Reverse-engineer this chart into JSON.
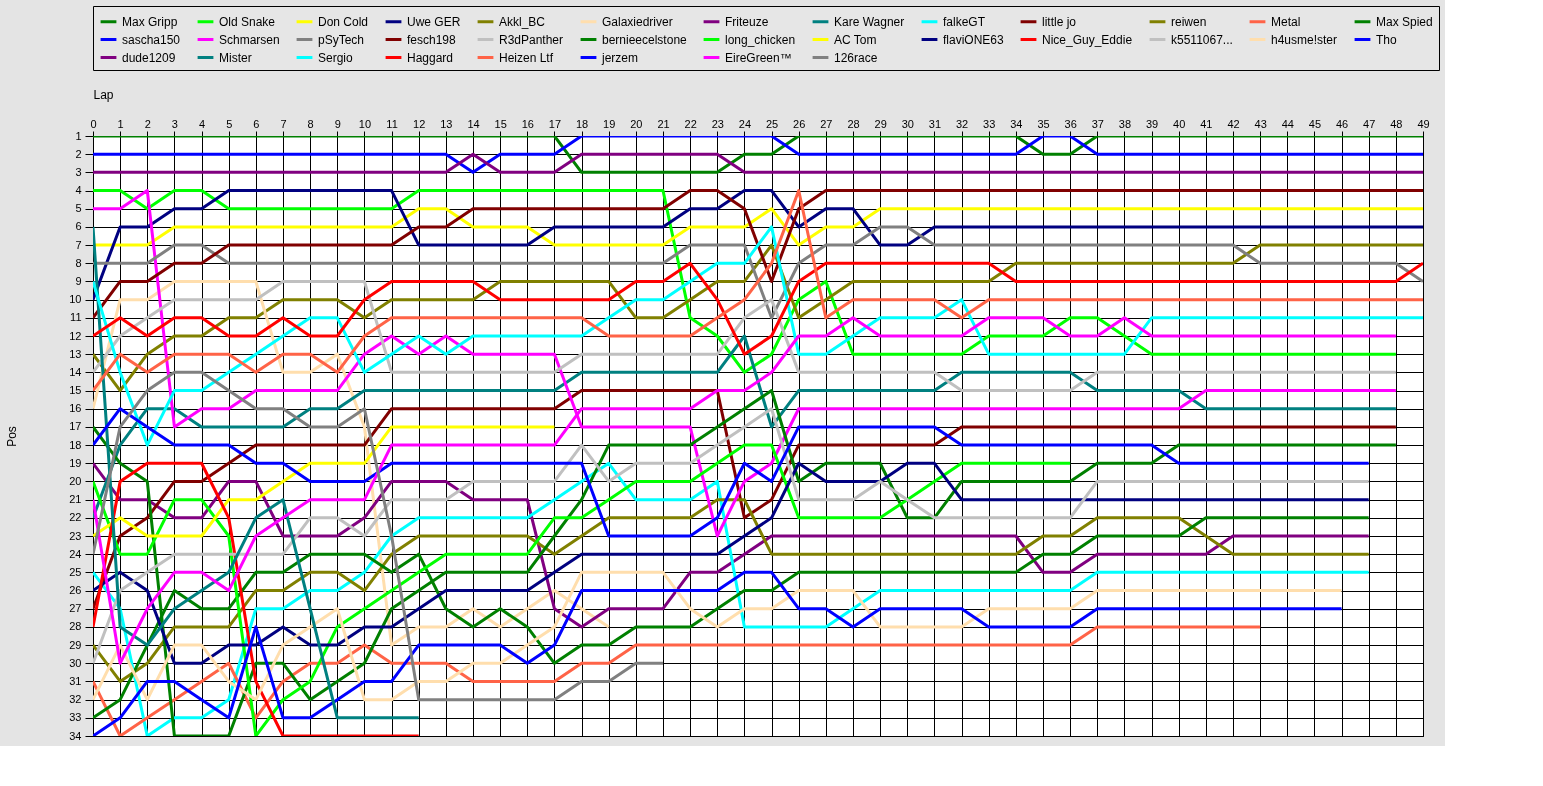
{
  "chart_data": {
    "type": "line",
    "xlabel": "Lap",
    "ylabel": "Pos",
    "x": [
      0,
      1,
      2,
      3,
      4,
      5,
      6,
      7,
      8,
      9,
      10,
      11,
      12,
      13,
      14,
      15,
      16,
      17,
      18,
      19,
      20,
      21,
      22,
      23,
      24,
      25,
      26,
      27,
      28,
      29,
      30,
      31,
      32,
      33,
      34,
      35,
      36,
      37,
      38,
      39,
      40,
      41,
      42,
      43,
      44,
      45,
      46,
      47,
      48,
      49
    ],
    "xlim": [
      0,
      49
    ],
    "xticks": [
      0,
      1,
      2,
      3,
      4,
      5,
      6,
      7,
      8,
      9,
      10,
      11,
      12,
      13,
      14,
      15,
      16,
      17,
      18,
      19,
      20,
      21,
      22,
      23,
      24,
      25,
      26,
      27,
      28,
      29,
      30,
      31,
      32,
      33,
      34,
      35,
      36,
      37,
      38,
      39,
      40,
      41,
      42,
      43,
      44,
      45,
      46,
      47,
      48,
      49
    ],
    "ylim": [
      34,
      1
    ],
    "yticks": [
      1,
      2,
      3,
      4,
      5,
      6,
      7,
      8,
      9,
      10,
      11,
      12,
      13,
      14,
      15,
      16,
      17,
      18,
      19,
      20,
      21,
      22,
      23,
      24,
      25,
      26,
      27,
      28,
      29,
      30,
      31,
      32,
      33,
      34
    ],
    "grid": true,
    "legend": "top",
    "line_style": "solid",
    "series": [
      {
        "name": "Max Gripp",
        "color": "#008000",
        "values": [
          1,
          1,
          1,
          1,
          1,
          1,
          1,
          1,
          1,
          1,
          1,
          1,
          1,
          1,
          1,
          1,
          1,
          1,
          3,
          3,
          3,
          3,
          3,
          3,
          2,
          2,
          1,
          1,
          1,
          1,
          1,
          1,
          1,
          1,
          1,
          2,
          2,
          1,
          1,
          1,
          1,
          1,
          1,
          1,
          1,
          1,
          1,
          1,
          1,
          1
        ]
      },
      {
        "name": "Old Snake",
        "color": "#00ff00",
        "values": [
          4,
          4,
          5,
          4,
          4,
          5,
          5,
          5,
          5,
          5,
          5,
          5,
          4,
          4,
          4,
          4,
          4,
          4,
          4,
          4,
          4,
          4,
          11,
          12,
          14,
          13,
          10,
          9,
          13,
          13,
          13,
          13,
          13,
          12,
          12,
          12,
          11,
          11,
          12,
          13,
          13,
          13,
          13,
          13,
          13,
          13,
          13,
          13,
          13,
          null
        ]
      },
      {
        "name": "Don Cold",
        "color": "#ffff00",
        "values": [
          7,
          7,
          7,
          6,
          6,
          6,
          6,
          6,
          6,
          6,
          6,
          6,
          5,
          5,
          6,
          6,
          6,
          7,
          7,
          7,
          7,
          7,
          6,
          6,
          6,
          5,
          7,
          6,
          6,
          5,
          5,
          5,
          5,
          5,
          5,
          5,
          5,
          5,
          5,
          5,
          5,
          5,
          5,
          5,
          5,
          5,
          5,
          5,
          5,
          5
        ]
      },
      {
        "name": "Uwe GER",
        "color": "#000080",
        "values": [
          10,
          6,
          6,
          5,
          5,
          4,
          4,
          4,
          4,
          4,
          4,
          4,
          7,
          7,
          7,
          7,
          7,
          6,
          6,
          6,
          6,
          6,
          5,
          5,
          4,
          4,
          6,
          5,
          5,
          7,
          7,
          6,
          6,
          6,
          6,
          6,
          6,
          6,
          6,
          6,
          6,
          6,
          6,
          6,
          6,
          6,
          6,
          6,
          6,
          6
        ]
      },
      {
        "name": "Akkl_BC",
        "color": "#808000",
        "values": [
          13,
          15,
          13,
          12,
          12,
          11,
          11,
          10,
          10,
          10,
          11,
          10,
          10,
          10,
          10,
          9,
          9,
          9,
          9,
          9,
          11,
          11,
          10,
          9,
          9,
          7,
          11,
          10,
          9,
          9,
          9,
          9,
          9,
          9,
          8,
          8,
          8,
          8,
          8,
          8,
          8,
          8,
          8,
          7,
          7,
          7,
          7,
          7,
          7,
          7
        ]
      },
      {
        "name": "Galaxiedriver",
        "color": "#ffdead",
        "values": [
          16,
          10,
          10,
          9,
          9,
          9,
          9,
          14,
          14,
          13,
          17,
          29,
          28,
          28,
          27,
          28,
          27,
          26,
          27,
          28,
          null,
          null,
          null,
          null,
          null,
          null,
          null,
          null,
          null,
          null,
          null,
          null,
          null,
          null,
          null,
          null,
          null,
          null,
          null,
          null,
          null,
          null,
          null,
          null,
          null,
          null,
          null,
          null,
          null,
          null
        ]
      },
      {
        "name": "Friteuze",
        "color": "#800080",
        "values": [
          19,
          21,
          21,
          22,
          22,
          20,
          20,
          23,
          23,
          23,
          22,
          20,
          20,
          20,
          21,
          21,
          21,
          27,
          28,
          27,
          27,
          27,
          25,
          25,
          24,
          23,
          23,
          23,
          23,
          23,
          23,
          23,
          23,
          23,
          23,
          25,
          25,
          24,
          24,
          24,
          24,
          24,
          23,
          23,
          23,
          23,
          23,
          23,
          null,
          null
        ]
      },
      {
        "name": "Kare Wagner",
        "color": "#008080",
        "values": [
          22,
          18,
          16,
          16,
          17,
          17,
          17,
          17,
          16,
          16,
          15,
          15,
          15,
          15,
          15,
          15,
          15,
          15,
          14,
          14,
          14,
          14,
          14,
          14,
          12,
          17,
          15,
          15,
          15,
          15,
          15,
          15,
          14,
          14,
          14,
          14,
          14,
          15,
          15,
          15,
          15,
          16,
          16,
          16,
          16,
          16,
          16,
          16,
          16,
          null
        ]
      },
      {
        "name": "falkeGT",
        "color": "#00ffff",
        "values": [
          25,
          27,
          34,
          33,
          33,
          32,
          27,
          27,
          26,
          26,
          25,
          23,
          22,
          22,
          22,
          22,
          22,
          21,
          20,
          19,
          21,
          21,
          21,
          20,
          28,
          28,
          28,
          28,
          27,
          26,
          26,
          26,
          26,
          26,
          26,
          26,
          26,
          25,
          25,
          25,
          25,
          25,
          25,
          25,
          25,
          25,
          25,
          25,
          null,
          null
        ]
      },
      {
        "name": "little jo",
        "color": "#800000",
        "values": [
          27,
          23,
          22,
          20,
          20,
          19,
          18,
          18,
          18,
          18,
          18,
          16,
          16,
          16,
          16,
          16,
          16,
          16,
          15,
          15,
          15,
          15,
          15,
          15,
          22,
          21,
          18,
          18,
          18,
          18,
          18,
          18,
          17,
          17,
          17,
          17,
          17,
          17,
          17,
          17,
          17,
          17,
          17,
          17,
          17,
          17,
          17,
          17,
          17,
          null
        ]
      },
      {
        "name": "reiwen",
        "color": "#808000",
        "values": [
          29,
          31,
          30,
          28,
          28,
          28,
          26,
          26,
          25,
          25,
          26,
          24,
          23,
          23,
          23,
          23,
          23,
          24,
          23,
          22,
          22,
          22,
          22,
          21,
          21,
          24,
          24,
          24,
          24,
          24,
          24,
          24,
          24,
          24,
          24,
          23,
          23,
          22,
          22,
          22,
          22,
          23,
          24,
          24,
          24,
          24,
          24,
          24,
          null,
          null
        ]
      },
      {
        "name": "Metal",
        "color": "#ff6347",
        "values": [
          31,
          34,
          33,
          32,
          31,
          30,
          33,
          31,
          30,
          30,
          29,
          30,
          30,
          30,
          31,
          31,
          31,
          31,
          30,
          30,
          29,
          29,
          29,
          29,
          29,
          29,
          29,
          29,
          29,
          29,
          29,
          29,
          29,
          29,
          29,
          29,
          29,
          28,
          28,
          28,
          28,
          28,
          28,
          28,
          null,
          null,
          null,
          null,
          null,
          null
        ]
      },
      {
        "name": "Max Spied",
        "color": "#008000",
        "values": [
          33,
          32,
          29,
          26,
          27,
          27,
          25,
          25,
          24,
          24,
          24,
          25,
          24,
          27,
          28,
          27,
          28,
          30,
          29,
          29,
          28,
          28,
          28,
          27,
          26,
          26,
          25,
          25,
          25,
          25,
          25,
          25,
          25,
          25,
          25,
          24,
          24,
          23,
          23,
          23,
          23,
          22,
          22,
          22,
          22,
          22,
          22,
          22,
          null,
          null
        ]
      },
      {
        "name": "sascha150",
        "color": "#0000ff",
        "values": [
          2,
          2,
          2,
          2,
          2,
          2,
          2,
          2,
          2,
          2,
          2,
          2,
          2,
          2,
          3,
          2,
          2,
          2,
          1,
          1,
          1,
          1,
          1,
          1,
          1,
          1,
          2,
          2,
          2,
          2,
          2,
          2,
          2,
          2,
          2,
          1,
          1,
          2,
          2,
          2,
          2,
          2,
          2,
          2,
          2,
          2,
          2,
          2,
          2,
          2
        ]
      },
      {
        "name": "Schmarsen",
        "color": "#ff00ff",
        "values": [
          5,
          5,
          4,
          17,
          16,
          16,
          15,
          15,
          15,
          15,
          13,
          12,
          13,
          12,
          13,
          13,
          13,
          13,
          17,
          17,
          17,
          17,
          17,
          23,
          20,
          19,
          16,
          16,
          16,
          16,
          16,
          16,
          16,
          16,
          16,
          16,
          16,
          16,
          16,
          16,
          16,
          15,
          15,
          15,
          15,
          15,
          15,
          15,
          15,
          null
        ]
      },
      {
        "name": "pSyTech",
        "color": "#808080",
        "values": [
          8,
          8,
          8,
          7,
          7,
          8,
          8,
          8,
          8,
          8,
          8,
          8,
          8,
          8,
          8,
          8,
          8,
          8,
          8,
          8,
          8,
          8,
          7,
          7,
          7,
          11,
          8,
          7,
          7,
          6,
          6,
          7,
          7,
          7,
          7,
          7,
          7,
          7,
          7,
          7,
          7,
          7,
          7,
          8,
          8,
          8,
          8,
          8,
          8,
          9
        ]
      },
      {
        "name": "fesch198",
        "color": "#800000",
        "values": [
          11,
          9,
          9,
          8,
          8,
          7,
          7,
          7,
          7,
          7,
          7,
          7,
          6,
          6,
          5,
          5,
          5,
          5,
          5,
          5,
          5,
          5,
          4,
          4,
          5,
          9,
          5,
          4,
          4,
          4,
          4,
          4,
          4,
          4,
          4,
          4,
          4,
          4,
          4,
          4,
          4,
          4,
          4,
          4,
          4,
          4,
          4,
          4,
          4,
          4
        ]
      },
      {
        "name": "R3dPanther",
        "color": "#c0c0c0",
        "values": [
          14,
          12,
          11,
          10,
          10,
          10,
          10,
          9,
          9,
          9,
          9,
          14,
          14,
          14,
          14,
          14,
          14,
          14,
          13,
          13,
          13,
          13,
          13,
          13,
          11,
          10,
          14,
          14,
          14,
          14,
          14,
          14,
          15,
          15,
          15,
          15,
          15,
          14,
          14,
          14,
          14,
          14,
          14,
          14,
          14,
          14,
          14,
          14,
          14,
          null
        ]
      },
      {
        "name": "bernieecelstone",
        "color": "#008000",
        "values": [
          17,
          19,
          20,
          34,
          34,
          34,
          30,
          30,
          32,
          31,
          30,
          27,
          26,
          25,
          25,
          25,
          25,
          23,
          21,
          18,
          18,
          18,
          18,
          17,
          16,
          15,
          20,
          19,
          19,
          19,
          22,
          22,
          20,
          20,
          20,
          20,
          20,
          19,
          19,
          19,
          18,
          18,
          18,
          18,
          18,
          18,
          18,
          18,
          18,
          null
        ]
      },
      {
        "name": "long_chicken",
        "color": "#00ff00",
        "values": [
          20,
          24,
          24,
          21,
          21,
          23,
          34,
          32,
          31,
          28,
          27,
          26,
          25,
          24,
          24,
          24,
          24,
          22,
          22,
          21,
          20,
          20,
          20,
          19,
          18,
          18,
          22,
          22,
          22,
          22,
          21,
          20,
          19,
          19,
          19,
          19,
          19,
          null,
          null,
          null,
          null,
          null,
          null,
          null,
          null,
          null,
          null,
          null,
          null,
          null
        ]
      },
      {
        "name": "AC Tom",
        "color": "#ffff00",
        "values": [
          23,
          22,
          23,
          23,
          23,
          21,
          21,
          20,
          19,
          19,
          19,
          17,
          17,
          17,
          17,
          17,
          17,
          17,
          null,
          null,
          null,
          null,
          null,
          null,
          null,
          null,
          null,
          null,
          null,
          null,
          null,
          null,
          null,
          null,
          null,
          null,
          null,
          null,
          null,
          null,
          null,
          null,
          null,
          null,
          null,
          null,
          null,
          null,
          null,
          null
        ]
      },
      {
        "name": "flaviONE63",
        "color": "#000080",
        "values": [
          26,
          25,
          26,
          30,
          30,
          29,
          29,
          28,
          29,
          29,
          28,
          28,
          27,
          26,
          26,
          26,
          26,
          25,
          24,
          24,
          24,
          24,
          24,
          24,
          23,
          22,
          19,
          20,
          20,
          20,
          19,
          19,
          21,
          21,
          21,
          21,
          21,
          21,
          21,
          21,
          21,
          21,
          21,
          21,
          21,
          21,
          21,
          21,
          null,
          null
        ]
      },
      {
        "name": "Nice_Guy_Eddie",
        "color": "#ff0000",
        "values": [
          28,
          20,
          19,
          19,
          19,
          22,
          31,
          34,
          34,
          34,
          34,
          34,
          34,
          null,
          null,
          null,
          null,
          null,
          null,
          null,
          null,
          null,
          null,
          null,
          null,
          null,
          null,
          null,
          null,
          null,
          null,
          null,
          null,
          null,
          null,
          null,
          null,
          null,
          null,
          null,
          null,
          null,
          null,
          null,
          null,
          null,
          null,
          null,
          null,
          null
        ]
      },
      {
        "name": "k5511067...",
        "color": "#c0c0c0",
        "values": [
          30,
          26,
          25,
          24,
          24,
          24,
          24,
          24,
          22,
          22,
          23,
          21,
          21,
          21,
          20,
          20,
          20,
          20,
          18,
          20,
          19,
          19,
          19,
          18,
          17,
          16,
          21,
          21,
          21,
          20,
          21,
          22,
          22,
          22,
          22,
          22,
          22,
          20,
          20,
          20,
          20,
          20,
          20,
          20,
          20,
          20,
          20,
          20,
          null,
          null
        ]
      },
      {
        "name": "h4usme!ster",
        "color": "#ffdead",
        "values": [
          32,
          29,
          32,
          29,
          29,
          31,
          32,
          29,
          28,
          27,
          32,
          32,
          31,
          31,
          30,
          30,
          29,
          28,
          25,
          25,
          25,
          25,
          27,
          28,
          27,
          27,
          26,
          26,
          26,
          28,
          28,
          28,
          28,
          27,
          27,
          27,
          27,
          26,
          26,
          26,
          26,
          26,
          26,
          26,
          26,
          26,
          26,
          null,
          null,
          null
        ]
      },
      {
        "name": "Tho",
        "color": "#0000ff",
        "values": [
          34,
          33,
          31,
          31,
          32,
          33,
          28,
          33,
          33,
          32,
          31,
          31,
          29,
          29,
          29,
          29,
          30,
          29,
          26,
          26,
          26,
          26,
          26,
          26,
          25,
          25,
          27,
          27,
          28,
          27,
          27,
          27,
          27,
          28,
          28,
          28,
          28,
          27,
          27,
          27,
          27,
          27,
          27,
          27,
          27,
          27,
          27,
          null,
          null,
          null
        ]
      },
      {
        "name": "dude1209",
        "color": "#800080",
        "values": [
          3,
          3,
          3,
          3,
          3,
          3,
          3,
          3,
          3,
          3,
          3,
          3,
          3,
          3,
          2,
          3,
          3,
          3,
          2,
          2,
          2,
          2,
          2,
          2,
          3,
          3,
          3,
          3,
          3,
          3,
          3,
          3,
          3,
          3,
          3,
          3,
          3,
          3,
          3,
          3,
          3,
          3,
          3,
          3,
          3,
          3,
          3,
          3,
          3,
          3
        ]
      },
      {
        "name": "Mister",
        "color": "#008080",
        "values": [
          6,
          28,
          29,
          27,
          26,
          25,
          22,
          21,
          27,
          33,
          33,
          33,
          33,
          null,
          null,
          null,
          null,
          null,
          null,
          null,
          null,
          null,
          null,
          null,
          null,
          null,
          null,
          null,
          null,
          null,
          null,
          null,
          null,
          null,
          null,
          null,
          null,
          null,
          null,
          null,
          null,
          null,
          null,
          null,
          null,
          null,
          null,
          null,
          null,
          null
        ]
      },
      {
        "name": "Sergio",
        "color": "#00ffff",
        "values": [
          9,
          14,
          18,
          15,
          15,
          14,
          13,
          12,
          11,
          11,
          14,
          13,
          12,
          13,
          12,
          12,
          12,
          12,
          12,
          11,
          10,
          10,
          9,
          8,
          8,
          6,
          13,
          13,
          12,
          11,
          11,
          11,
          10,
          13,
          13,
          13,
          13,
          13,
          13,
          11,
          11,
          11,
          11,
          11,
          11,
          11,
          11,
          11,
          11,
          11
        ]
      },
      {
        "name": "Haggard",
        "color": "#ff0000",
        "values": [
          12,
          11,
          12,
          11,
          11,
          12,
          12,
          11,
          12,
          12,
          10,
          9,
          9,
          9,
          9,
          10,
          10,
          10,
          10,
          10,
          9,
          9,
          8,
          10,
          13,
          12,
          9,
          8,
          8,
          8,
          8,
          8,
          8,
          8,
          9,
          9,
          9,
          9,
          9,
          9,
          9,
          9,
          9,
          9,
          9,
          9,
          9,
          9,
          9,
          8
        ]
      },
      {
        "name": "Heizen Ltf",
        "color": "#ff6347",
        "values": [
          15,
          13,
          14,
          13,
          13,
          13,
          14,
          13,
          13,
          14,
          12,
          11,
          11,
          11,
          11,
          11,
          11,
          11,
          11,
          12,
          12,
          12,
          12,
          11,
          10,
          8,
          4,
          11,
          10,
          10,
          10,
          10,
          11,
          10,
          10,
          10,
          10,
          10,
          10,
          10,
          10,
          10,
          10,
          10,
          10,
          10,
          10,
          10,
          10,
          10
        ]
      },
      {
        "name": "jerzem",
        "color": "#0000ff",
        "values": [
          18,
          16,
          17,
          18,
          18,
          18,
          19,
          19,
          20,
          20,
          20,
          19,
          19,
          19,
          19,
          19,
          19,
          19,
          19,
          23,
          23,
          23,
          23,
          22,
          19,
          20,
          17,
          17,
          17,
          17,
          17,
          17,
          18,
          18,
          18,
          18,
          18,
          18,
          18,
          18,
          19,
          19,
          19,
          19,
          19,
          19,
          19,
          19,
          null,
          null
        ]
      },
      {
        "name": "EireGreen™",
        "color": "#ff00ff",
        "values": [
          21,
          30,
          27,
          25,
          25,
          26,
          23,
          22,
          21,
          21,
          21,
          18,
          18,
          18,
          18,
          18,
          18,
          18,
          16,
          16,
          16,
          16,
          16,
          15,
          15,
          14,
          12,
          12,
          11,
          12,
          12,
          12,
          12,
          11,
          11,
          11,
          12,
          12,
          11,
          12,
          12,
          12,
          12,
          12,
          12,
          12,
          12,
          12,
          12,
          null
        ]
      },
      {
        "name": "126race",
        "color": "#808080",
        "values": [
          24,
          17,
          15,
          14,
          14,
          15,
          16,
          16,
          17,
          17,
          16,
          23,
          32,
          32,
          32,
          32,
          32,
          32,
          31,
          31,
          30,
          30,
          null,
          null,
          null,
          null,
          null,
          null,
          null,
          null,
          null,
          null,
          null,
          null,
          null,
          null,
          null,
          null,
          null,
          null,
          null,
          null,
          null,
          null,
          null,
          null,
          null,
          null,
          null,
          null
        ]
      }
    ]
  }
}
